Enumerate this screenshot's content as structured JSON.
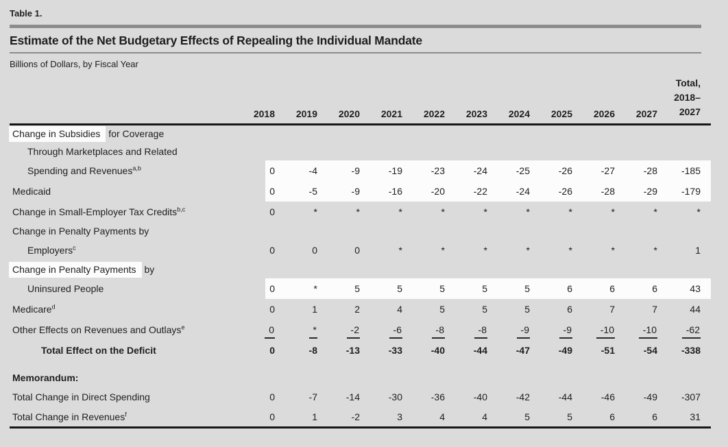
{
  "page": {
    "table_label": "Table 1.",
    "title": "Estimate of the Net Budgetary Effects of Repealing the Individual Mandate",
    "subtitle": "Billions of Dollars, by Fiscal Year"
  },
  "colors": {
    "background": "#dbdbdb",
    "highlight": "#fcfcfc",
    "rule_gray": "#8c8c8c",
    "rule_black": "#161616",
    "text": "#1e1e1e"
  },
  "table": {
    "year_columns": [
      "2018",
      "2019",
      "2020",
      "2021",
      "2022",
      "2023",
      "2024",
      "2025",
      "2026",
      "2027"
    ],
    "total_column_lines": [
      "Total,",
      "2018–",
      "2027"
    ],
    "rows": [
      {
        "name": "subsidies-marketplaces",
        "label_lines": [
          {
            "text": "Change in Subsidies for Coverage",
            "indent": 0,
            "highlight_prefix": "Change in Subsidies"
          },
          {
            "text": "Through Marketplaces and Related",
            "indent": 1
          },
          {
            "text": "Spending and Revenues",
            "indent": 1,
            "sup": "a,b"
          }
        ],
        "values": [
          "0",
          "-4",
          "-9",
          "-19",
          "-23",
          "-24",
          "-25",
          "-26",
          "-27",
          "-28",
          "-185"
        ],
        "values_highlighted": true
      },
      {
        "name": "medicaid",
        "label_lines": [
          {
            "text": "Medicaid",
            "indent": 0
          }
        ],
        "values": [
          "0",
          "-5",
          "-9",
          "-16",
          "-20",
          "-22",
          "-24",
          "-26",
          "-28",
          "-29",
          "-179"
        ],
        "values_highlighted": true
      },
      {
        "name": "small-employer-tax-credits",
        "label_lines": [
          {
            "text": "Change in Small-Employer Tax Credits",
            "indent": 0,
            "sup": "b,c"
          }
        ],
        "values": [
          "0",
          "*",
          "*",
          "*",
          "*",
          "*",
          "*",
          "*",
          "*",
          "*",
          "*"
        ]
      },
      {
        "name": "penalty-payments-employers",
        "label_lines": [
          {
            "text": "Change in Penalty Payments by",
            "indent": 0
          },
          {
            "text": "Employers",
            "indent": 1,
            "sup": "c"
          }
        ],
        "values": [
          "0",
          "0",
          "0",
          "*",
          "*",
          "*",
          "*",
          "*",
          "*",
          "*",
          "1"
        ]
      },
      {
        "name": "penalty-payments-uninsured",
        "label_lines": [
          {
            "text": "Change in Penalty Payments by",
            "indent": 0,
            "highlight_prefix": "Change in Penalty Payments"
          },
          {
            "text": "Uninsured People",
            "indent": 1
          }
        ],
        "values": [
          "0",
          "*",
          "5",
          "5",
          "5",
          "5",
          "5",
          "6",
          "6",
          "6",
          "43"
        ],
        "values_highlighted": true
      },
      {
        "name": "medicare",
        "label_lines": [
          {
            "text": "Medicare",
            "indent": 0,
            "sup": "d"
          }
        ],
        "values": [
          "0",
          "1",
          "2",
          "4",
          "5",
          "5",
          "5",
          "6",
          "7",
          "7",
          "44"
        ]
      },
      {
        "name": "other-effects",
        "label_lines": [
          {
            "text": "Other Effects on Revenues and Outlays",
            "indent": 0,
            "sup": "e"
          }
        ],
        "values": [
          "0",
          "*",
          "-2",
          "-6",
          "-8",
          "-8",
          "-9",
          "-9",
          "-10",
          "-10",
          "-62"
        ],
        "values_underlined": true
      },
      {
        "name": "total-effect-on-deficit",
        "label_lines": [
          {
            "text": "Total Effect on the Deficit",
            "indent": 2
          }
        ],
        "values": [
          "0",
          "-8",
          "-13",
          "-33",
          "-40",
          "-44",
          "-47",
          "-49",
          "-51",
          "-54",
          "-338"
        ],
        "bold": true
      },
      {
        "name": "memorandum-spacer",
        "spacer": true
      },
      {
        "name": "memorandum-heading",
        "label_lines": [
          {
            "text": "Memorandum:",
            "indent": 0
          }
        ],
        "values": [],
        "bold": true
      },
      {
        "name": "total-change-direct-spending",
        "label_lines": [
          {
            "text": "Total Change in Direct Spending",
            "indent": 0
          }
        ],
        "values": [
          "0",
          "-7",
          "-14",
          "-30",
          "-36",
          "-40",
          "-42",
          "-44",
          "-46",
          "-49",
          "-307"
        ]
      },
      {
        "name": "total-change-revenues",
        "label_lines": [
          {
            "text": "Total Change in Revenues",
            "indent": 0,
            "sup": "f"
          }
        ],
        "values": [
          "0",
          "1",
          "-2",
          "3",
          "4",
          "4",
          "5",
          "5",
          "6",
          "6",
          "31"
        ]
      }
    ]
  }
}
